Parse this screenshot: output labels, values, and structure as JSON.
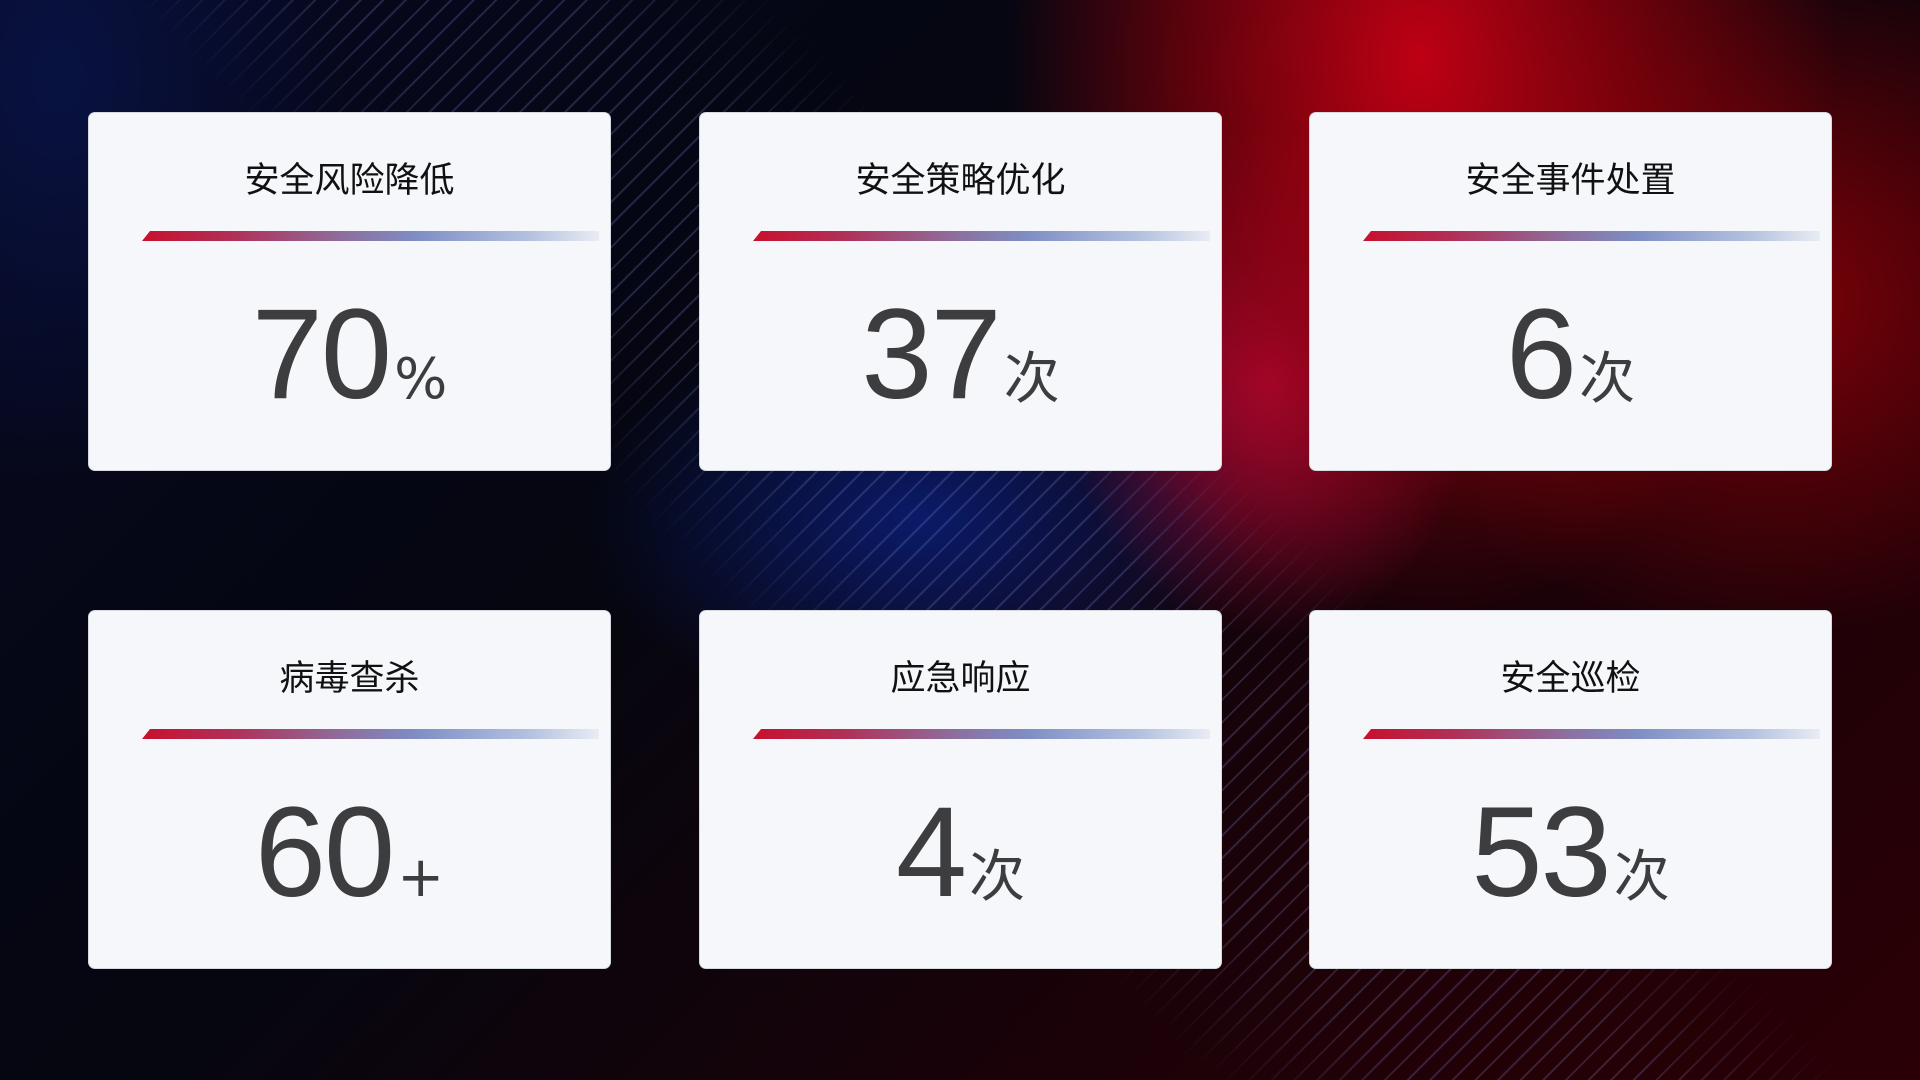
{
  "cards": [
    {
      "title": "安全风险降低",
      "value": "70",
      "unit": "%"
    },
    {
      "title": "安全策略优化",
      "value": "37",
      "unit": "次"
    },
    {
      "title": "安全事件处置",
      "value": "6",
      "unit": "次"
    },
    {
      "title": "病毒查杀",
      "value": "60",
      "unit": "+"
    },
    {
      "title": "应急响应",
      "value": "4",
      "unit": "次"
    },
    {
      "title": "安全巡检",
      "value": "53",
      "unit": "次"
    }
  ],
  "colors": {
    "accent_red": "#c8102e",
    "accent_blue": "#7e8ec4",
    "card_bg": "#f5f7fb",
    "value_text": "#3d3d3f"
  }
}
